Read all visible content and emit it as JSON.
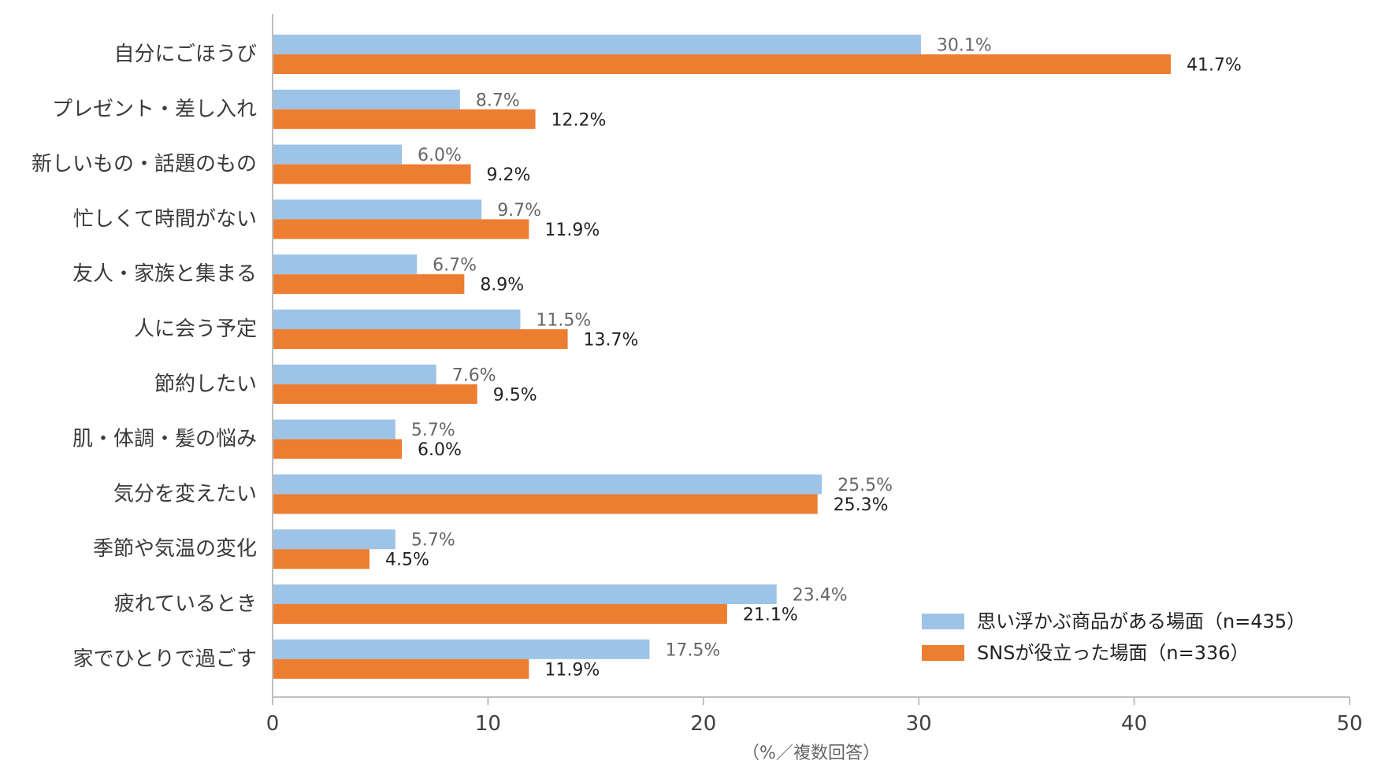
{
  "chart_data": {
    "type": "bar",
    "orientation": "horizontal",
    "categories": [
      "自分にごほうび",
      "プレゼント・差し入れ",
      "新しいもの・話題のもの",
      "忙しくて時間がない",
      "友人・家族と集まる",
      "人に会う予定",
      "節約したい",
      "肌・体調・髪の悩み",
      "気分を変えたい",
      "季節や気温の変化",
      "疲れているとき",
      "家でひとりで過ごす"
    ],
    "series": [
      {
        "name": "思い浮かぶ商品がある場面（n=435）",
        "color": "#9dc3e6",
        "values": [
          30.1,
          8.7,
          6.0,
          9.7,
          6.7,
          11.5,
          7.6,
          5.7,
          25.5,
          5.7,
          23.4,
          17.5
        ],
        "labels": [
          "30.1%",
          "8.7%",
          "6.0%",
          "9.7%",
          "6.7%",
          "11.5%",
          "7.6%",
          "5.7%",
          "25.5%",
          "5.7%",
          "23.4%",
          "17.5%"
        ]
      },
      {
        "name": "SNSが役立った場面（n=336）",
        "color": "#ed7d31",
        "values": [
          41.7,
          12.2,
          9.2,
          11.9,
          8.9,
          13.7,
          9.5,
          6.0,
          25.3,
          4.5,
          21.1,
          11.9
        ],
        "labels": [
          "41.7%",
          "12.2%",
          "9.2%",
          "11.9%",
          "8.9%",
          "13.7%",
          "9.5%",
          "6.0%",
          "25.3%",
          "4.5%",
          "21.1%",
          "11.9%"
        ]
      }
    ],
    "xlabel": "（%／複数回答）",
    "ylabel": "",
    "xlim": [
      0,
      50
    ],
    "xticks": [
      0,
      10,
      20,
      30,
      40,
      50
    ],
    "grid": false,
    "legend_position": "bottom-right"
  }
}
